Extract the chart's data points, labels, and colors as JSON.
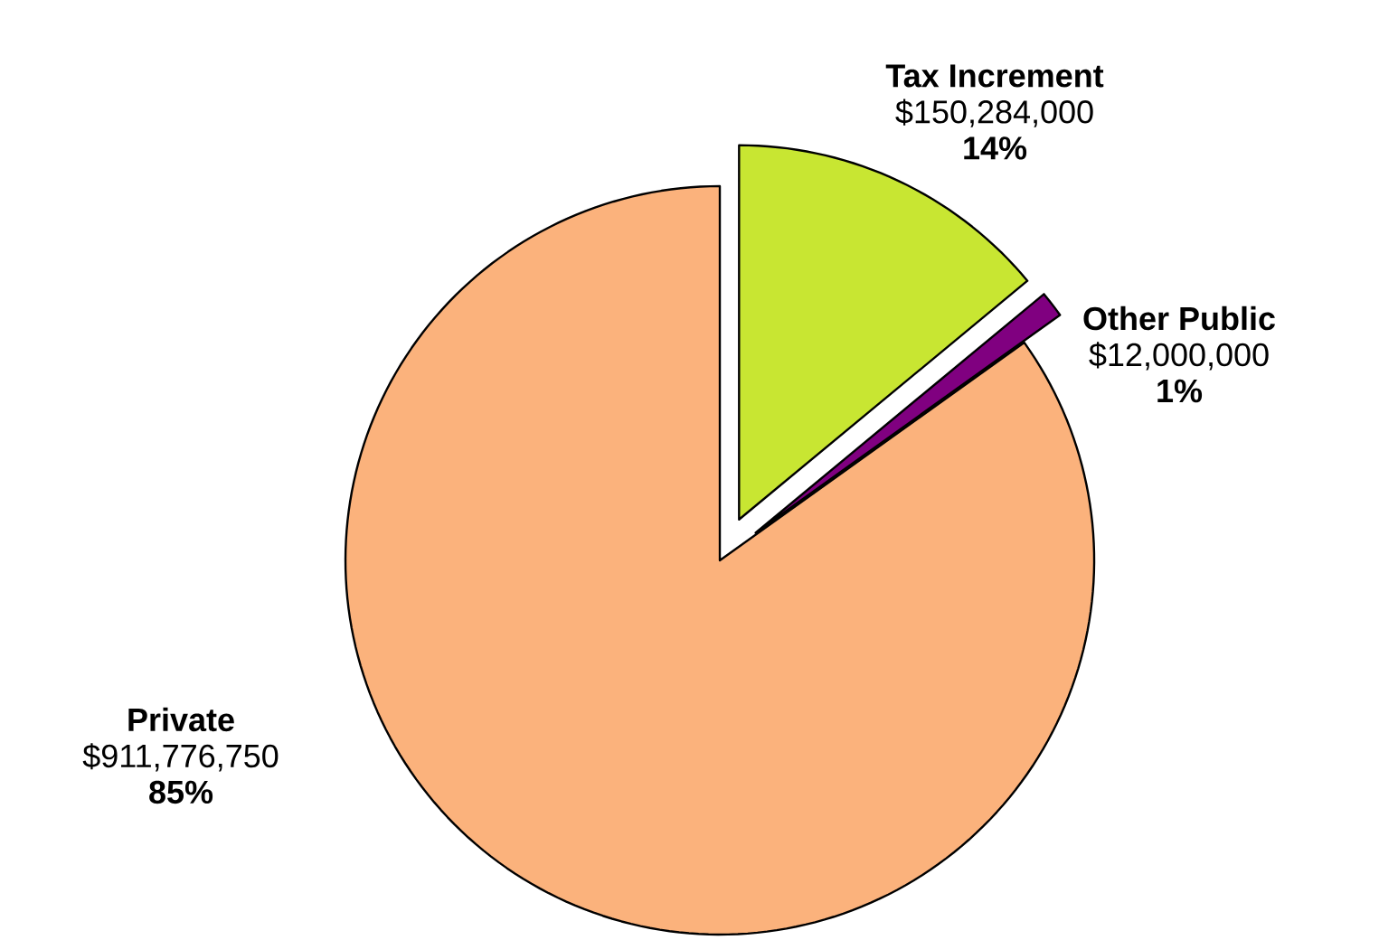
{
  "chart_data": {
    "type": "pie",
    "categories": [
      "Tax Increment",
      "Other Public",
      "Private"
    ],
    "values": [
      150284000,
      12000000,
      911776750
    ],
    "colors": [
      "#c8e632",
      "#800080",
      "#fbb27c"
    ],
    "value_labels": [
      "$150,284,000",
      "$12,000,000",
      "$911,776,750"
    ],
    "annotations": [
      "14%",
      "1%",
      "85%"
    ]
  }
}
